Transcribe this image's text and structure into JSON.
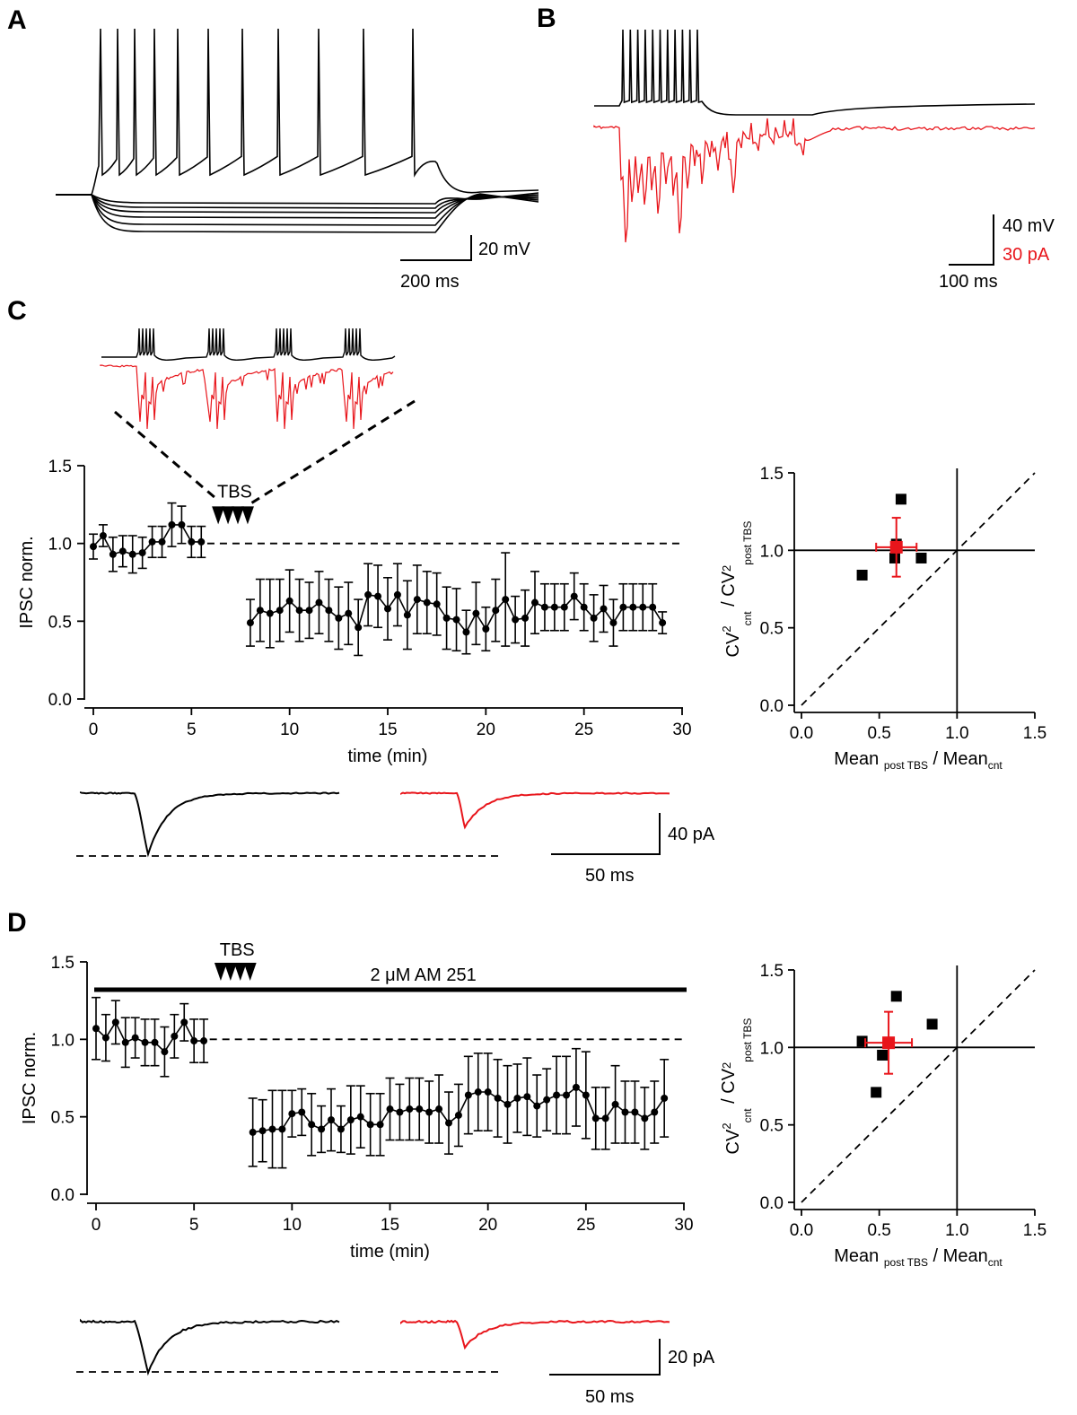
{
  "panels": {
    "A": {
      "letter": "A",
      "scale_v": "20 mV",
      "scale_h": "200 ms"
    },
    "B": {
      "letter": "B",
      "scale_v_black": "40 mV",
      "scale_v_red": "30 pA",
      "scale_h": "100 ms"
    },
    "C": {
      "letter": "C",
      "tbs": "TBS",
      "ylabel": "IPSC norm.",
      "xlabel": "time (min)",
      "trace_scale_v": "40 pA",
      "trace_scale_h": "50 ms"
    },
    "D": {
      "letter": "D",
      "tbs": "TBS",
      "drug": "2 μM AM 251",
      "ylabel": "IPSC norm.",
      "xlabel": "time (min)",
      "trace_scale_v": "20 pA",
      "trace_scale_h": "50 ms"
    }
  },
  "cv_axis": {
    "ylabel_main": "CV",
    "ylabel_sub1": "cnt",
    "ylabel_div": " / CV",
    "ylabel_sub2": "post TBS",
    "sup": "2",
    "xlabel_main1": "Mean ",
    "xlabel_sub1": "post TBS",
    "xlabel_div": " / Mean",
    "xlabel_sub2": "cnt"
  },
  "colors": {
    "control": "#000000",
    "post": "#e8151b",
    "dashed": "#000000"
  },
  "chart_data": [
    {
      "id": "C-time",
      "type": "line",
      "title": "",
      "xlabel": "time (min)",
      "ylabel": "IPSC norm.",
      "xlim": [
        0,
        30
      ],
      "ylim": [
        0,
        1.5
      ],
      "xticks": [
        "0",
        "5",
        "10",
        "15",
        "20",
        "25",
        "30"
      ],
      "yticks": [
        "0.0",
        "0.5",
        "1.0",
        "1.5"
      ],
      "reference_line": 1.0,
      "tbs_times": [
        6.5,
        7.0,
        7.5,
        8.0
      ],
      "series": [
        {
          "name": "pre",
          "x": [
            0,
            0.5,
            1,
            1.5,
            2,
            2.5,
            3,
            3.5,
            4,
            4.5,
            5,
            5.5
          ],
          "y": [
            0.98,
            1.05,
            0.93,
            0.95,
            0.93,
            0.94,
            1.01,
            1.01,
            1.12,
            1.12,
            1.01,
            1.01
          ],
          "err": [
            0.08,
            0.07,
            0.11,
            0.1,
            0.12,
            0.1,
            0.1,
            0.1,
            0.14,
            0.12,
            0.1,
            0.1
          ]
        },
        {
          "name": "post",
          "x": [
            8,
            8.5,
            9,
            9.5,
            10,
            10.5,
            11,
            11.5,
            12,
            12.5,
            13,
            13.5,
            14,
            14.5,
            15,
            15.5,
            16,
            16.5,
            17,
            17.5,
            18,
            18.5,
            19,
            19.5,
            20,
            20.5,
            21,
            21.5,
            22,
            22.5,
            23,
            23.5,
            24,
            24.5,
            25,
            25.5,
            26,
            26.5,
            27,
            27.5,
            28,
            28.5,
            29
          ],
          "y": [
            0.49,
            0.57,
            0.55,
            0.57,
            0.63,
            0.57,
            0.57,
            0.62,
            0.57,
            0.52,
            0.55,
            0.46,
            0.67,
            0.66,
            0.58,
            0.67,
            0.54,
            0.64,
            0.62,
            0.61,
            0.52,
            0.51,
            0.43,
            0.55,
            0.45,
            0.57,
            0.64,
            0.51,
            0.52,
            0.62,
            0.59,
            0.59,
            0.59,
            0.66,
            0.59,
            0.52,
            0.58,
            0.49,
            0.59,
            0.59,
            0.59,
            0.59,
            0.49
          ],
          "err": [
            0.15,
            0.2,
            0.22,
            0.2,
            0.2,
            0.2,
            0.18,
            0.2,
            0.2,
            0.2,
            0.2,
            0.18,
            0.2,
            0.2,
            0.2,
            0.2,
            0.22,
            0.22,
            0.2,
            0.2,
            0.2,
            0.2,
            0.14,
            0.2,
            0.14,
            0.2,
            0.3,
            0.15,
            0.18,
            0.2,
            0.15,
            0.15,
            0.15,
            0.15,
            0.15,
            0.15,
            0.15,
            0.15,
            0.15,
            0.15,
            0.15,
            0.15,
            0.07
          ]
        }
      ]
    },
    {
      "id": "C-cv",
      "type": "scatter",
      "xlabel": "Mean post TBS / Mean cnt",
      "ylabel": "CV2 cnt / CV2 post TBS",
      "xlim": [
        0,
        1.5
      ],
      "ylim": [
        0,
        1.5
      ],
      "xticks": [
        "0.0",
        "0.5",
        "1.0",
        "1.5"
      ],
      "yticks": [
        "0.0",
        "0.5",
        "1.0",
        "1.5"
      ],
      "points": [
        {
          "x": 0.39,
          "y": 0.84
        },
        {
          "x": 0.6,
          "y": 0.95
        },
        {
          "x": 0.61,
          "y": 1.04
        },
        {
          "x": 0.64,
          "y": 1.33
        },
        {
          "x": 0.77,
          "y": 0.95
        }
      ],
      "mean": {
        "x": 0.61,
        "y": 1.02,
        "xerr": 0.13,
        "yerr": 0.19
      }
    },
    {
      "id": "D-time",
      "type": "line",
      "title": "",
      "xlabel": "time (min)",
      "ylabel": "IPSC norm.",
      "xlim": [
        0,
        30
      ],
      "ylim": [
        0,
        1.5
      ],
      "xticks": [
        "0",
        "5",
        "10",
        "15",
        "20",
        "25",
        "30"
      ],
      "yticks": [
        "0.0",
        "0.5",
        "1.0",
        "1.5"
      ],
      "reference_line": 1.0,
      "tbs_times": [
        6.5,
        7.0,
        7.5,
        8.0
      ],
      "series": [
        {
          "name": "pre",
          "x": [
            0,
            0.5,
            1,
            1.5,
            2,
            2.5,
            3,
            3.5,
            4,
            4.5,
            5,
            5.5
          ],
          "y": [
            1.07,
            1.01,
            1.11,
            0.98,
            1.01,
            0.98,
            0.98,
            0.92,
            1.02,
            1.11,
            0.99,
            0.99
          ],
          "err": [
            0.2,
            0.15,
            0.14,
            0.16,
            0.13,
            0.15,
            0.15,
            0.16,
            0.14,
            0.12,
            0.14,
            0.14
          ]
        },
        {
          "name": "post",
          "x": [
            8,
            8.5,
            9,
            9.5,
            10,
            10.5,
            11,
            11.5,
            12,
            12.5,
            13,
            13.5,
            14,
            14.5,
            15,
            15.5,
            16,
            16.5,
            17,
            17.5,
            18,
            18.5,
            19,
            19.5,
            20,
            20.5,
            21,
            21.5,
            22,
            22.5,
            23,
            23.5,
            24,
            24.5,
            25,
            25.5,
            26,
            26.5,
            27,
            27.5,
            28,
            28.5,
            29
          ],
          "y": [
            0.4,
            0.41,
            0.42,
            0.42,
            0.52,
            0.53,
            0.45,
            0.42,
            0.48,
            0.42,
            0.48,
            0.5,
            0.45,
            0.45,
            0.55,
            0.53,
            0.55,
            0.55,
            0.53,
            0.55,
            0.46,
            0.51,
            0.64,
            0.66,
            0.66,
            0.62,
            0.58,
            0.62,
            0.63,
            0.57,
            0.61,
            0.64,
            0.64,
            0.69,
            0.64,
            0.49,
            0.49,
            0.58,
            0.53,
            0.53,
            0.49,
            0.53,
            0.62
          ],
          "err": [
            0.22,
            0.2,
            0.25,
            0.25,
            0.15,
            0.15,
            0.2,
            0.15,
            0.2,
            0.15,
            0.22,
            0.2,
            0.2,
            0.2,
            0.2,
            0.18,
            0.2,
            0.2,
            0.2,
            0.22,
            0.2,
            0.2,
            0.25,
            0.25,
            0.25,
            0.25,
            0.25,
            0.22,
            0.25,
            0.2,
            0.2,
            0.25,
            0.25,
            0.25,
            0.28,
            0.2,
            0.2,
            0.25,
            0.2,
            0.2,
            0.2,
            0.2,
            0.25
          ]
        }
      ]
    },
    {
      "id": "D-cv",
      "type": "scatter",
      "xlabel": "Mean post TBS / Mean cnt",
      "ylabel": "CV2 cnt / CV2 post TBS",
      "xlim": [
        0,
        1.5
      ],
      "ylim": [
        0,
        1.5
      ],
      "xticks": [
        "0.0",
        "0.5",
        "1.0",
        "1.5"
      ],
      "yticks": [
        "0.0",
        "0.5",
        "1.0",
        "1.5"
      ],
      "points": [
        {
          "x": 0.39,
          "y": 1.04
        },
        {
          "x": 0.48,
          "y": 0.71
        },
        {
          "x": 0.52,
          "y": 0.95
        },
        {
          "x": 0.61,
          "y": 1.33
        },
        {
          "x": 0.84,
          "y": 1.15
        }
      ],
      "mean": {
        "x": 0.56,
        "y": 1.03,
        "xerr": 0.15,
        "yerr": 0.2
      }
    }
  ]
}
